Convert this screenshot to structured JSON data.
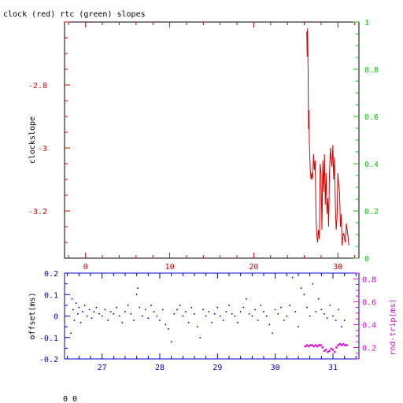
{
  "title": "clock (red) rtc (green) slopes",
  "footer": "0 0",
  "colors": {
    "frame": "#000000",
    "clock": "#dd0000",
    "rtc": "#00cc00",
    "offset": "#0000cc",
    "roundtrip": "#dd00dd"
  },
  "chart_data": [
    {
      "type": "line",
      "panel": "slopes",
      "ylabel": "clockslope",
      "xlim": [
        -2.5,
        32.5
      ],
      "ylim": [
        -3.35,
        -2.6
      ],
      "y2lim": [
        0,
        1
      ],
      "x_ticks": [
        "0",
        "10",
        "20",
        "30"
      ],
      "y_ticks": [
        "-2.8",
        "-3",
        "-3.2"
      ],
      "y2_ticks": [
        "0",
        "0.2",
        "0.4",
        "0.6",
        "0.8",
        "1"
      ],
      "series": [
        {
          "name": "clock",
          "x": [
            26.3,
            26.35,
            26.4,
            26.45,
            26.5,
            26.55,
            26.6,
            26.7,
            26.8,
            26.9,
            27.0,
            27.1,
            27.2,
            27.3,
            27.4,
            27.5,
            27.6,
            27.7,
            27.8,
            27.9,
            28.0,
            28.1,
            28.2,
            28.3,
            28.4,
            28.5,
            28.6,
            28.7,
            28.8,
            28.9,
            29.0,
            29.1,
            29.2,
            29.3,
            29.4,
            29.5,
            29.6,
            29.7,
            29.8,
            29.9,
            30.0,
            30.1,
            30.2,
            30.3,
            30.4,
            30.5,
            30.6,
            30.7,
            30.8,
            30.9,
            31.0,
            31.1,
            31.2,
            31.3
          ],
          "values": [
            -2.63,
            -2.71,
            -2.62,
            -2.74,
            -2.94,
            -2.88,
            -2.98,
            -3.06,
            -3.1,
            -3.08,
            -3.1,
            -3.02,
            -3.07,
            -3.04,
            -3.22,
            -3.28,
            -3.3,
            -3.26,
            -3.29,
            -3.05,
            -3.08,
            -3.26,
            -3.04,
            -3.14,
            -3.02,
            -3.18,
            -3.08,
            -3.21,
            -3.16,
            -3.25,
            -3.08,
            -3.0,
            -3.04,
            -3.06,
            -2.99,
            -3.1,
            -3.03,
            -3.19,
            -3.26,
            -3.22,
            -3.08,
            -3.12,
            -3.14,
            -3.25,
            -3.21,
            -3.31,
            -3.28,
            -3.27,
            -3.29,
            -3.3,
            -3.24,
            -3.26,
            -3.28,
            -3.31
          ]
        }
      ]
    },
    {
      "type": "scatter",
      "panel": "offset",
      "ylabel": "offset(ms)",
      "y2label": "rnd-trip(ms)",
      "xlim": [
        26.35,
        31.45
      ],
      "ylim": [
        -0.2,
        0.2
      ],
      "y2lim": [
        0.1,
        0.85
      ],
      "x_ticks": [
        "27",
        "28",
        "29",
        "30",
        "31"
      ],
      "y_ticks": [
        "0.2",
        "0.1",
        "0",
        "-0.1",
        "-0.2"
      ],
      "y2_ticks": [
        "0.8",
        "0.6",
        "0.4",
        "0.2"
      ],
      "series": [
        {
          "name": "offset",
          "x": [
            26.46,
            26.48,
            26.5,
            26.52,
            26.55,
            26.58,
            26.6,
            26.63,
            26.66,
            26.7,
            26.74,
            26.78,
            26.82,
            26.86,
            26.9,
            26.95,
            27.0,
            27.05,
            27.1,
            27.15,
            27.2,
            27.25,
            27.3,
            27.35,
            27.4,
            27.45,
            27.5,
            27.55,
            27.6,
            27.62,
            27.65,
            27.7,
            27.75,
            27.8,
            27.85,
            27.9,
            27.95,
            28.0,
            28.05,
            28.1,
            28.15,
            28.2,
            28.25,
            28.3,
            28.35,
            28.4,
            28.45,
            28.5,
            28.55,
            28.6,
            28.65,
            28.7,
            28.75,
            28.8,
            28.85,
            28.9,
            28.95,
            29.0,
            29.05,
            29.1,
            29.15,
            29.2,
            29.25,
            29.3,
            29.35,
            29.4,
            29.45,
            29.5,
            29.55,
            29.6,
            29.65,
            29.7,
            29.75,
            29.8,
            29.85,
            29.9,
            29.95,
            30.0,
            30.05,
            30.1,
            30.15,
            30.2,
            30.25,
            30.3,
            30.35,
            30.4,
            30.45,
            30.5,
            30.55,
            30.6,
            30.65,
            30.7,
            30.75,
            30.8,
            30.85,
            30.9,
            30.95,
            31.0,
            31.05,
            31.1,
            31.15,
            31.2
          ],
          "values": [
            -0.08,
            0.08,
            0.03,
            -0.02,
            0.06,
            0.01,
            0.04,
            -0.03,
            0.02,
            0.05,
            0.0,
            0.03,
            -0.01,
            0.02,
            0.04,
            0.01,
            0.0,
            0.03,
            -0.02,
            0.02,
            0.01,
            0.04,
            0.0,
            -0.03,
            0.02,
            0.05,
            0.01,
            -0.02,
            0.1,
            0.13,
            0.04,
            0.0,
            0.03,
            -0.01,
            0.05,
            0.02,
            0.0,
            -0.02,
            0.03,
            -0.04,
            -0.06,
            -0.12,
            0.01,
            0.03,
            0.05,
            0.0,
            0.02,
            -0.03,
            0.04,
            0.01,
            -0.05,
            -0.1,
            0.03,
            0.0,
            0.02,
            -0.03,
            0.01,
            0.04,
            0.0,
            -0.02,
            0.02,
            0.05,
            0.01,
            0.0,
            -0.03,
            0.02,
            0.04,
            0.08,
            0.01,
            0.0,
            0.03,
            -0.02,
            0.05,
            0.02,
            0.0,
            -0.04,
            -0.08,
            0.03,
            0.01,
            0.04,
            -0.02,
            0.0,
            0.05,
            0.18,
            0.02,
            -0.05,
            0.13,
            0.1,
            0.04,
            0.0,
            0.15,
            0.02,
            0.08,
            0.03,
            0.01,
            -0.01,
            0.05,
            0.0,
            -0.02,
            0.03,
            -0.05,
            -0.02
          ]
        },
        {
          "name": "rnd-trip",
          "x": [
            30.52,
            30.55,
            30.58,
            30.61,
            30.64,
            30.67,
            30.7,
            30.73,
            30.76,
            30.79,
            30.82,
            30.85,
            30.88,
            30.91,
            30.94,
            30.97,
            31.0,
            31.03,
            31.06,
            31.09,
            31.12,
            31.15,
            31.18,
            31.21,
            31.24
          ],
          "values": [
            0.21,
            0.22,
            0.21,
            0.22,
            0.22,
            0.21,
            0.22,
            0.21,
            0.22,
            0.22,
            0.2,
            0.17,
            0.18,
            0.16,
            0.17,
            0.19,
            0.18,
            0.16,
            0.2,
            0.22,
            0.23,
            0.22,
            0.23,
            0.22,
            0.22
          ]
        }
      ]
    }
  ]
}
